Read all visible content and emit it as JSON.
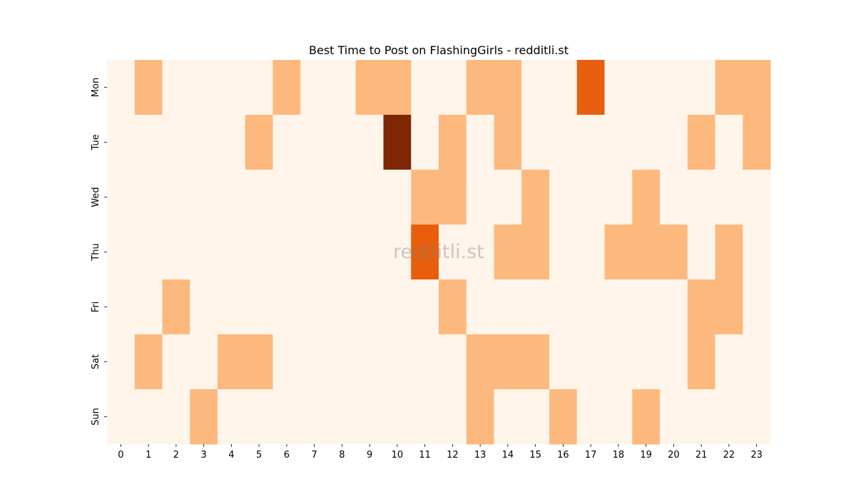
{
  "chart_data": {
    "type": "heatmap",
    "title": "Best Time to Post on FlashingGirls - redditli.st",
    "watermark": "redditli.st",
    "x_categories": [
      "0",
      "1",
      "2",
      "3",
      "4",
      "5",
      "6",
      "7",
      "8",
      "9",
      "10",
      "11",
      "12",
      "13",
      "14",
      "15",
      "16",
      "17",
      "18",
      "19",
      "20",
      "21",
      "22",
      "23"
    ],
    "y_categories": [
      "Mon",
      "Tue",
      "Wed",
      "Thu",
      "Fri",
      "Sat",
      "Sun"
    ],
    "values": [
      [
        0,
        1,
        0,
        0,
        0,
        0,
        1,
        0,
        0,
        1,
        1,
        0,
        0,
        1,
        1,
        0,
        0,
        3,
        0,
        0,
        0,
        0,
        1,
        1
      ],
      [
        0,
        0,
        0,
        0,
        0,
        1,
        0,
        0,
        0,
        0,
        5,
        0,
        1,
        0,
        1,
        0,
        0,
        0,
        0,
        0,
        0,
        1,
        0,
        1
      ],
      [
        0,
        0,
        0,
        0,
        0,
        0,
        0,
        0,
        0,
        0,
        0,
        1,
        1,
        0,
        0,
        1,
        0,
        0,
        0,
        1,
        0,
        0,
        0,
        0
      ],
      [
        0,
        0,
        0,
        0,
        0,
        0,
        0,
        0,
        0,
        0,
        0,
        3,
        0,
        0,
        1,
        1,
        0,
        0,
        1,
        1,
        1,
        0,
        1,
        0
      ],
      [
        0,
        0,
        1,
        0,
        0,
        0,
        0,
        0,
        0,
        0,
        0,
        0,
        1,
        0,
        0,
        0,
        0,
        0,
        0,
        0,
        0,
        1,
        1,
        0
      ],
      [
        0,
        1,
        0,
        0,
        1,
        1,
        0,
        0,
        0,
        0,
        0,
        0,
        0,
        1,
        1,
        1,
        0,
        0,
        0,
        0,
        0,
        1,
        0,
        0
      ],
      [
        0,
        0,
        0,
        1,
        0,
        0,
        0,
        0,
        0,
        0,
        0,
        0,
        0,
        1,
        0,
        0,
        1,
        0,
        0,
        1,
        0,
        0,
        0,
        0
      ]
    ],
    "value_range": [
      0,
      5
    ],
    "colormap": "Oranges",
    "colors": {
      "0": "#fff5eb",
      "1": "#fdb97d",
      "3": "#e95e0d",
      "5": "#7f2704"
    },
    "grid": false,
    "legend": "none"
  }
}
